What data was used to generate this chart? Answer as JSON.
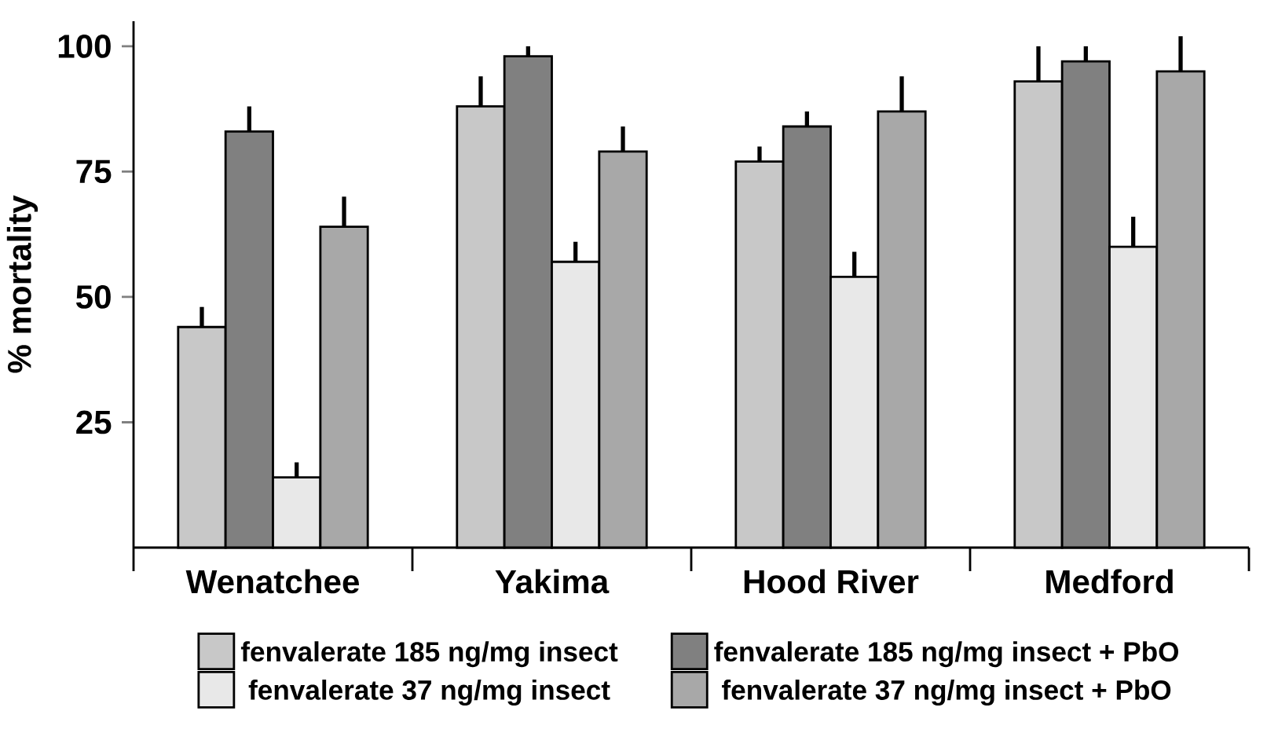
{
  "chart_data": {
    "type": "bar",
    "ylabel": "% mortality",
    "categories": [
      "Wenatchee",
      "Yakima",
      "Hood River",
      "Medford"
    ],
    "series": [
      {
        "name": "fenvalerate 185 ng/mg insect",
        "color": "#c8c8c8",
        "values": [
          44,
          88,
          77,
          93
        ],
        "errors": [
          [
            44,
            48
          ],
          [
            88,
            94
          ],
          [
            77,
            80
          ],
          [
            93,
            100
          ]
        ]
      },
      {
        "name": "fenvalerate 185 ng/mg insect + PbO",
        "color": "#808080",
        "values": [
          83,
          98,
          84,
          97
        ],
        "errors": [
          [
            83,
            88
          ],
          [
            98,
            100
          ],
          [
            84,
            87
          ],
          [
            97,
            100
          ]
        ]
      },
      {
        "name": "fenvalerate 37 ng/mg insect",
        "color": "#e8e8e8",
        "values": [
          14,
          57,
          54,
          60
        ],
        "errors": [
          [
            14,
            17
          ],
          [
            57,
            61
          ],
          [
            54,
            59
          ],
          [
            60,
            66
          ]
        ]
      },
      {
        "name": "fenvalerate 37 ng/mg insect + PbO",
        "color": "#a8a8a8",
        "values": [
          64,
          79,
          87,
          95
        ],
        "errors": [
          [
            64,
            70
          ],
          [
            79,
            84
          ],
          [
            87,
            94
          ],
          [
            95,
            102
          ]
        ]
      }
    ],
    "ylim": [
      0,
      105
    ],
    "yticks": [
      25,
      50,
      75,
      100
    ],
    "grid": false,
    "legend": "bottom"
  }
}
